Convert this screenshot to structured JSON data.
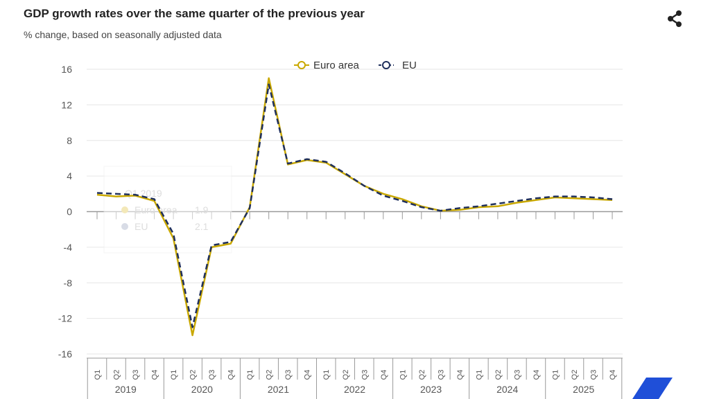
{
  "header": {
    "title": "GDP growth rates over the same quarter of the previous year",
    "subtitle": "% change, based on seasonally adjusted data",
    "share_icon": "share-icon"
  },
  "colors": {
    "euro_area": "#c9a800",
    "eu": "#1f2f5c",
    "accent_logo": "#1f4fd8",
    "grid": "#e6e6e6",
    "axis": "#999999"
  },
  "tooltip": {
    "period": "Q1 2019",
    "rows": [
      {
        "label": "Euro area",
        "value": "1.9"
      },
      {
        "label": "EU",
        "value": "2.1"
      }
    ]
  },
  "chart_data": {
    "type": "line",
    "title": "GDP growth rates over the same quarter of the previous year",
    "subtitle": "% change, based on seasonally adjusted data",
    "ylim": [
      -16,
      16
    ],
    "yticks": [
      16,
      12,
      8,
      4,
      0,
      -4,
      -8,
      -12,
      -16
    ],
    "grid": true,
    "legend": "top-center",
    "quarters": [
      "Q1",
      "Q2",
      "Q3",
      "Q4"
    ],
    "years": [
      "2019",
      "2020",
      "2021",
      "2022",
      "2023",
      "2024",
      "2025"
    ],
    "series": [
      {
        "name": "Euro area",
        "style": "solid",
        "values": [
          1.9,
          1.7,
          1.8,
          1.2,
          -3.0,
          -13.9,
          -4.0,
          -3.6,
          0.5,
          15.0,
          5.3,
          5.8,
          5.5,
          4.2,
          2.9,
          2.0,
          1.4,
          0.6,
          0.1,
          0.2,
          0.5,
          0.6,
          1.0,
          1.3,
          1.6,
          1.5,
          1.4,
          1.3
        ]
      },
      {
        "name": "EU",
        "style": "dashed",
        "values": [
          2.1,
          2.0,
          1.9,
          1.4,
          -2.5,
          -13.0,
          -3.8,
          -3.4,
          0.4,
          14.3,
          5.4,
          5.9,
          5.6,
          4.3,
          2.9,
          1.8,
          1.2,
          0.5,
          0.1,
          0.4,
          0.6,
          0.9,
          1.2,
          1.5,
          1.7,
          1.7,
          1.6,
          1.4
        ]
      }
    ]
  }
}
